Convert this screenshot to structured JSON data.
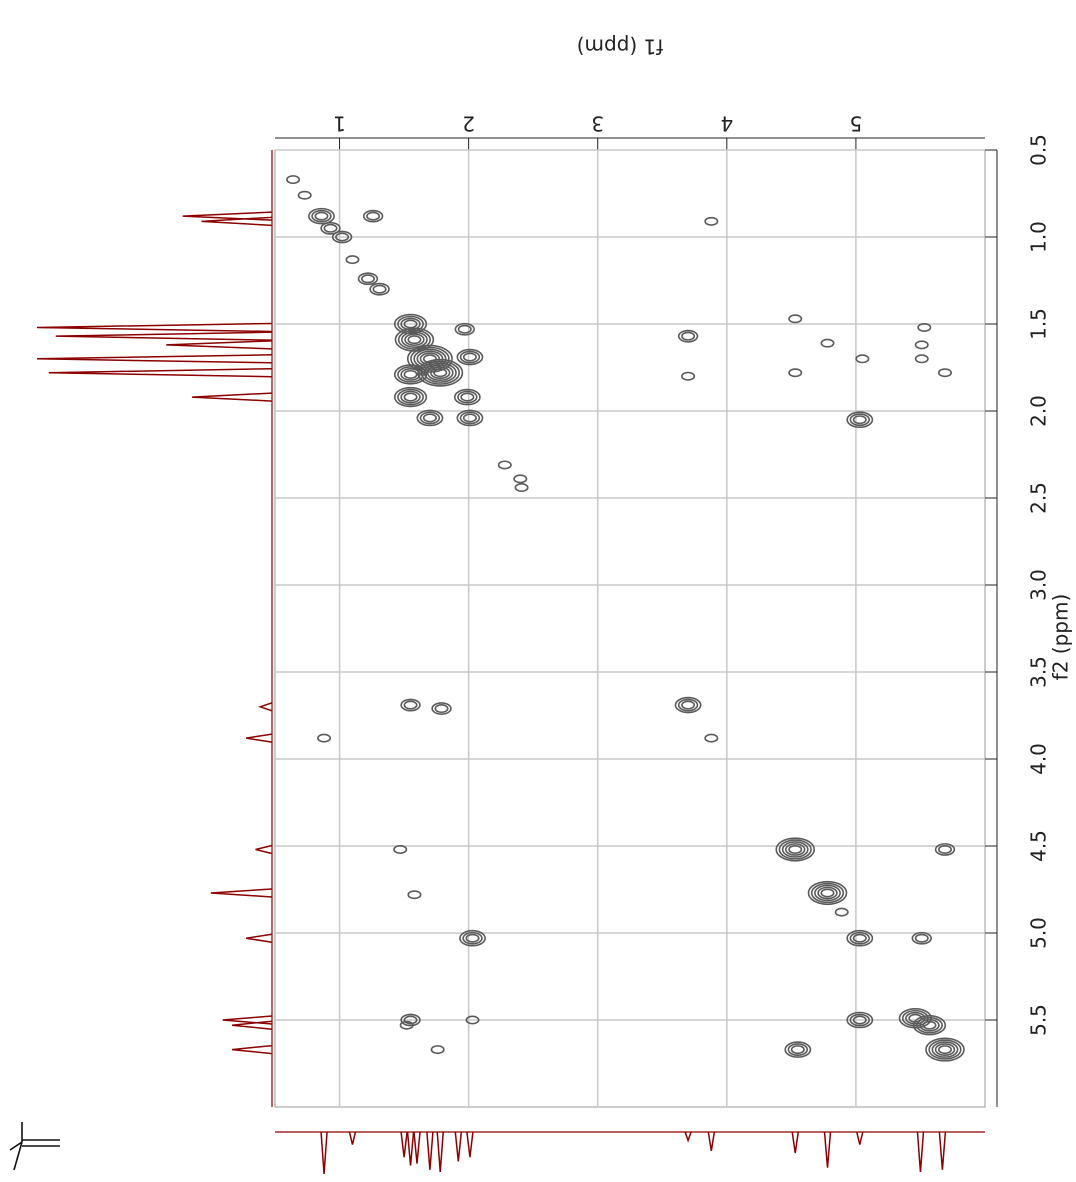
{
  "chart_data": {
    "type": "contour",
    "x_label": "f1 (ppm)",
    "y_label": "f2 (ppm)",
    "xlim": [
      0.5,
      6.0
    ],
    "ylim": [
      0.5,
      6.0
    ],
    "xticks": [
      1,
      2,
      3,
      4,
      5
    ],
    "yticks": [
      0.5,
      {
        "value": 1,
        "label": "1.0"
      },
      1.5,
      {
        "value": 2,
        "label": "2.0"
      },
      2.5,
      {
        "value": 3,
        "label": "3.0"
      },
      3.5,
      {
        "value": 4,
        "label": "4.0"
      },
      4.5,
      {
        "value": 5,
        "label": "5.0"
      },
      5.5
    ],
    "grid": true,
    "color": "#5a5a5a",
    "peaks": {
      "x": [
        0.64,
        0.73,
        0.86,
        0.93,
        1.26,
        1.02,
        1.1,
        1.22,
        1.31,
        1.55,
        1.58,
        1.7,
        1.78,
        1.55,
        1.55,
        1.7,
        1.99,
        2.01,
        1.97,
        2.01,
        2.28,
        2.4,
        2.41,
        3.88,
        3.7,
        3.7,
        4.53,
        4.78,
        4.53,
        5.05,
        5.53,
        5.51,
        5.51,
        5.69,
        5.03,
        1.55,
        1.79,
        0.88,
        3.7,
        3.88,
        1.47,
        1.58,
        4.53,
        4.78,
        4.89,
        2.03,
        5.03,
        5.51,
        5.69,
        1.55,
        1.52,
        2.03,
        1.76,
        5.03,
        5.46,
        5.57,
        5.69,
        4.55
      ],
      "y": [
        0.67,
        0.76,
        0.88,
        0.95,
        0.88,
        1.0,
        1.13,
        1.24,
        1.3,
        1.5,
        1.59,
        1.7,
        1.78,
        1.79,
        1.92,
        2.04,
        1.92,
        2.04,
        1.53,
        1.69,
        2.31,
        2.39,
        2.44,
        0.91,
        1.57,
        1.8,
        1.47,
        1.61,
        1.78,
        1.7,
        1.52,
        1.62,
        1.7,
        1.78,
        2.05,
        3.69,
        3.71,
        3.88,
        3.69,
        3.88,
        4.52,
        4.78,
        4.52,
        4.77,
        4.88,
        5.03,
        5.03,
        5.03,
        4.52,
        5.5,
        5.53,
        5.5,
        5.67,
        5.5,
        5.49,
        5.53,
        5.67,
        5.67
      ],
      "levels": [
        1,
        1,
        3,
        2,
        2,
        2,
        1,
        2,
        2,
        4,
        5,
        6,
        6,
        4,
        4,
        3,
        3,
        3,
        2,
        3,
        1,
        1,
        1,
        1,
        2,
        1,
        1,
        1,
        1,
        1,
        1,
        1,
        1,
        1,
        3,
        2,
        2,
        1,
        3,
        1,
        1,
        1,
        5,
        5,
        1,
        3,
        3,
        2,
        2,
        2,
        1,
        1,
        1,
        3,
        4,
        4,
        5,
        3
      ]
    },
    "f2_projection": {
      "color": "#8b0000",
      "positions": [
        0.88,
        0.91,
        1.52,
        1.57,
        1.62,
        1.7,
        1.78,
        1.92,
        3.7,
        3.88,
        4.52,
        4.77,
        5.03,
        5.5,
        5.53,
        5.67
      ],
      "heights": [
        38,
        30,
        100,
        92,
        45,
        100,
        95,
        34,
        5,
        11,
        7,
        26,
        11,
        21,
        17,
        17
      ]
    },
    "f1_projection": {
      "color": "#8b0000",
      "positions": [
        0.88,
        1.1,
        1.5,
        1.55,
        1.6,
        1.7,
        1.78,
        1.92,
        2.01,
        3.7,
        3.88,
        4.53,
        4.78,
        5.03,
        5.5,
        5.67
      ],
      "heights": [
        100,
        30,
        60,
        80,
        75,
        90,
        95,
        70,
        60,
        20,
        45,
        50,
        85,
        30,
        95,
        90
      ]
    }
  }
}
